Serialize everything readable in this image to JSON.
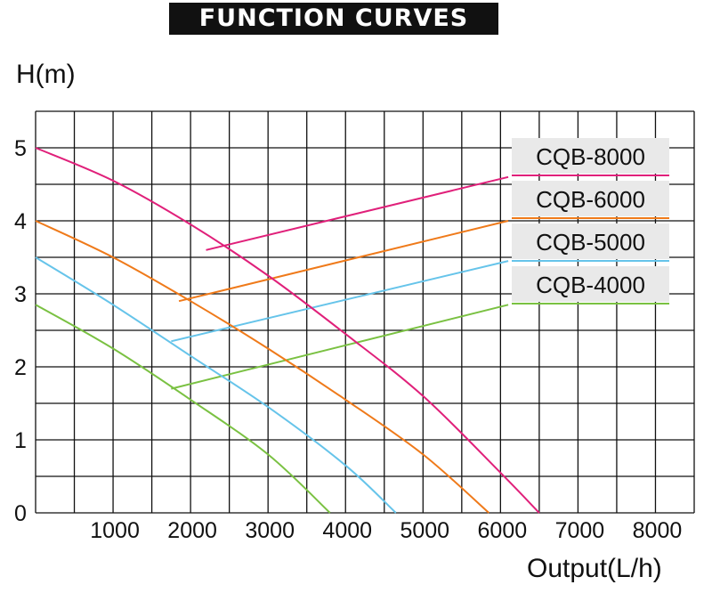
{
  "header": {
    "title": "FUNCTION CURVES"
  },
  "chart_data": {
    "type": "line",
    "title": "FUNCTION CURVES",
    "ylabel": "H(m)",
    "xlabel": "Output(L/h)",
    "xlim": [
      0,
      8500
    ],
    "ylim": [
      0,
      5.5
    ],
    "x_ticks": [
      1000,
      2000,
      3000,
      4000,
      5000,
      6000,
      7000,
      8000
    ],
    "x_tick_labels": [
      "1000",
      "2000",
      "3000",
      "4000",
      "5000",
      "6000",
      "7000",
      "8000"
    ],
    "y_ticks": [
      0,
      1,
      2,
      3,
      4,
      5
    ],
    "y_tick_labels": [
      "0",
      "1",
      "2",
      "3",
      "4",
      "5"
    ],
    "grid": true,
    "legend_position": "top-right",
    "series": [
      {
        "name": "CQB-8000",
        "color": "#e0207a",
        "x": [
          0,
          1000,
          2000,
          3000,
          4000,
          5000,
          6000,
          6500
        ],
        "y": [
          5.0,
          4.55,
          3.95,
          3.25,
          2.45,
          1.6,
          0.55,
          0
        ]
      },
      {
        "name": "CQB-6000",
        "color": "#ef7a1a",
        "x": [
          0,
          1000,
          2000,
          3000,
          4000,
          5000,
          5850
        ],
        "y": [
          4.0,
          3.5,
          2.9,
          2.25,
          1.55,
          0.8,
          0
        ]
      },
      {
        "name": "CQB-5000",
        "color": "#66c4ea",
        "x": [
          0,
          1000,
          2000,
          3000,
          4000,
          4650
        ],
        "y": [
          3.5,
          2.85,
          2.15,
          1.45,
          0.65,
          0
        ]
      },
      {
        "name": "CQB-4000",
        "color": "#7ac142",
        "x": [
          0,
          1000,
          2000,
          3000,
          3800
        ],
        "y": [
          2.85,
          2.25,
          1.55,
          0.8,
          0
        ]
      }
    ],
    "legend_pointers": [
      {
        "series": "CQB-8000",
        "x": [
          2200,
          6100
        ],
        "y": [
          3.6,
          4.6
        ]
      },
      {
        "series": "CQB-6000",
        "x": [
          1850,
          6100
        ],
        "y": [
          2.9,
          4.0
        ]
      },
      {
        "series": "CQB-5000",
        "x": [
          1750,
          6100
        ],
        "y": [
          2.35,
          3.45
        ]
      },
      {
        "series": "CQB-4000",
        "x": [
          1750,
          6100
        ],
        "y": [
          1.7,
          2.85
        ]
      }
    ]
  }
}
